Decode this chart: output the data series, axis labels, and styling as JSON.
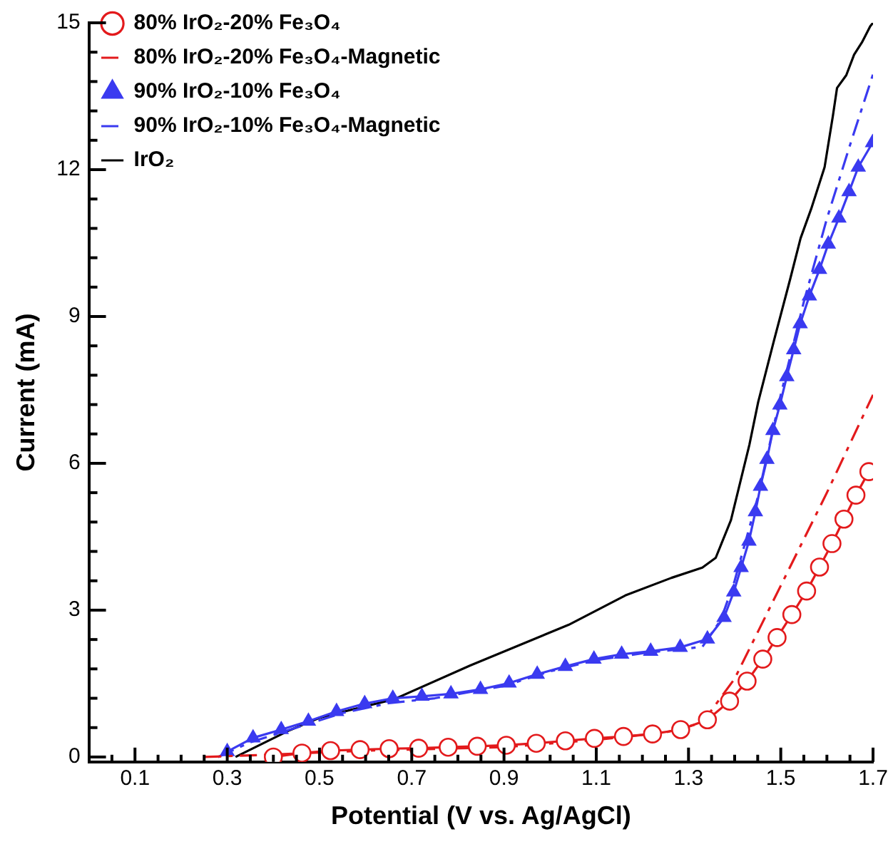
{
  "chart_data": {
    "type": "line",
    "xlabel": "Potential (V vs. Ag/AgCl)",
    "ylabel": "Current (mA)",
    "xlim": [
      0,
      1.7
    ],
    "xticks": [
      {
        "value": 0.05,
        "label": null
      },
      0.1,
      {
        "value": 0.15,
        "label": null
      },
      {
        "value": 0.2,
        "label": null
      },
      {
        "value": 0.25,
        "label": null
      },
      0.3,
      {
        "value": 0.35,
        "label": null
      },
      {
        "value": 0.4,
        "label": null
      },
      {
        "value": 0.45,
        "label": null
      },
      0.5,
      {
        "value": 0.55,
        "label": null
      },
      {
        "value": 0.6,
        "label": null
      },
      {
        "value": 0.65,
        "label": null
      },
      0.7,
      {
        "value": 0.75,
        "label": null
      },
      {
        "value": 0.8,
        "label": null
      },
      {
        "value": 0.85,
        "label": null
      },
      0.9,
      {
        "value": 0.95,
        "label": null
      },
      {
        "value": 1.0,
        "label": null
      },
      {
        "value": 1.05,
        "label": null
      },
      1.1,
      {
        "value": 1.15,
        "label": null
      },
      {
        "value": 1.2,
        "label": null
      },
      {
        "value": 1.25,
        "label": null
      },
      1.3,
      {
        "value": 1.35,
        "label": null
      },
      {
        "value": 1.4,
        "label": null
      },
      {
        "value": 1.45,
        "label": null
      },
      1.5,
      {
        "value": 1.55,
        "label": null
      },
      {
        "value": 1.6,
        "label": null
      },
      {
        "value": 1.65,
        "label": null
      },
      1.7
    ],
    "ylim": [
      -0.1,
      15
    ],
    "yticks": [
      0,
      {
        "value": 0.6,
        "label": null
      },
      {
        "value": 1.2,
        "label": null
      },
      {
        "value": 1.8,
        "label": null
      },
      {
        "value": 2.4,
        "label": null
      },
      3,
      {
        "value": 3.6,
        "label": null
      },
      {
        "value": 4.2,
        "label": null
      },
      {
        "value": 4.8,
        "label": null
      },
      {
        "value": 5.4,
        "label": null
      },
      6,
      {
        "value": 6.6,
        "label": null
      },
      {
        "value": 7.2,
        "label": null
      },
      {
        "value": 7.8,
        "label": null
      },
      {
        "value": 8.4,
        "label": null
      },
      9,
      {
        "value": 9.6,
        "label": null
      },
      {
        "value": 10.2,
        "label": null
      },
      {
        "value": 10.8,
        "label": null
      },
      {
        "value": 11.4,
        "label": null
      },
      12,
      {
        "value": 12.6,
        "label": null
      },
      {
        "value": 13.2,
        "label": null
      },
      {
        "value": 13.8,
        "label": null
      },
      {
        "value": 14.4,
        "label": null
      },
      15
    ],
    "legend": "top left",
    "series": [
      {
        "name": "80% IrO₂-20% Fe₃O₄",
        "color": "#e31a1c",
        "marker": "circle",
        "line_style": "solid",
        "x": [
          0.4,
          0.462,
          0.524,
          0.588,
          0.651,
          0.715,
          0.779,
          0.842,
          0.905,
          0.97,
          1.033,
          1.096,
          1.159,
          1.222,
          1.283,
          1.341,
          1.389,
          1.427,
          1.461,
          1.492,
          1.524,
          1.556,
          1.584,
          1.611,
          1.637,
          1.663,
          1.691
        ],
        "values": [
          0.0,
          0.08,
          0.13,
          0.15,
          0.17,
          0.18,
          0.2,
          0.22,
          0.24,
          0.28,
          0.33,
          0.38,
          0.42,
          0.47,
          0.56,
          0.76,
          1.14,
          1.55,
          2.0,
          2.44,
          2.91,
          3.39,
          3.88,
          4.36,
          4.86,
          5.35,
          5.83
        ]
      },
      {
        "name": "80% IrO₂-20% Fe₃O₄-Magnetic",
        "color": "#e31a1c",
        "marker": "none",
        "line_style": "dashed",
        "x": [
          0.25,
          0.4,
          0.6,
          0.9,
          1.1,
          1.25,
          1.33,
          1.4,
          1.5,
          1.6,
          1.7
        ],
        "values": [
          0,
          0.05,
          0.13,
          0.2,
          0.35,
          0.5,
          0.7,
          1.6,
          3.5,
          5.4,
          7.4
        ]
      },
      {
        "name": "90% IrO₂-10% Fe₃O₄",
        "color": "#3a3af0",
        "marker": "triangle",
        "line_style": "solid",
        "x": [
          0.3,
          0.356,
          0.417,
          0.476,
          0.537,
          0.598,
          0.659,
          0.722,
          0.785,
          0.849,
          0.911,
          0.972,
          1.033,
          1.095,
          1.155,
          1.218,
          1.282,
          1.341,
          1.377,
          1.398,
          1.414,
          1.431,
          1.445,
          1.456,
          1.47,
          1.483,
          1.498,
          1.513,
          1.528,
          1.542,
          1.562,
          1.584,
          1.603,
          1.626,
          1.648,
          1.668,
          1.699
        ],
        "values": [
          0.11,
          0.39,
          0.56,
          0.73,
          0.93,
          1.09,
          1.2,
          1.24,
          1.29,
          1.38,
          1.51,
          1.69,
          1.85,
          2.0,
          2.1,
          2.16,
          2.24,
          2.41,
          2.85,
          3.37,
          3.87,
          4.41,
          5.01,
          5.53,
          6.08,
          6.67,
          7.19,
          7.77,
          8.32,
          8.85,
          9.42,
          9.96,
          10.48,
          11.01,
          11.55,
          12.05,
          12.55
        ]
      },
      {
        "name": "90% IrO₂-10% Fe₃O₄-Magnetic",
        "color": "#3a3af0",
        "marker": "none",
        "line_style": "dashed",
        "x": [
          0.28,
          0.35,
          0.45,
          0.55,
          0.65,
          0.75,
          0.9,
          1.0,
          1.1,
          1.2,
          1.33,
          1.37,
          1.4,
          1.45,
          1.5,
          1.55,
          1.6,
          1.65,
          1.7
        ],
        "values": [
          0,
          0.3,
          0.6,
          0.9,
          1.1,
          1.2,
          1.45,
          1.75,
          1.98,
          2.12,
          2.25,
          2.8,
          3.6,
          5.3,
          7.4,
          9.3,
          11.0,
          12.5,
          13.95
        ]
      },
      {
        "name": "IrO₂",
        "color": "#000000",
        "marker": "none",
        "line_style": "solid",
        "x": [
          0.318,
          0.436,
          0.5,
          0.55,
          0.662,
          0.827,
          1.04,
          1.163,
          1.263,
          1.33,
          1.359,
          1.392,
          1.432,
          1.451,
          1.485,
          1.52,
          1.543,
          1.566,
          1.595,
          1.613,
          1.622,
          1.642,
          1.659,
          1.676,
          1.694,
          1.7
        ],
        "values": [
          0,
          0.55,
          0.8,
          0.92,
          1.18,
          1.87,
          2.7,
          3.3,
          3.66,
          3.87,
          4.07,
          4.84,
          6.38,
          7.25,
          8.5,
          9.75,
          10.6,
          11.2,
          12.05,
          13.1,
          13.67,
          13.93,
          14.35,
          14.6,
          14.93,
          15.0
        ]
      }
    ]
  }
}
